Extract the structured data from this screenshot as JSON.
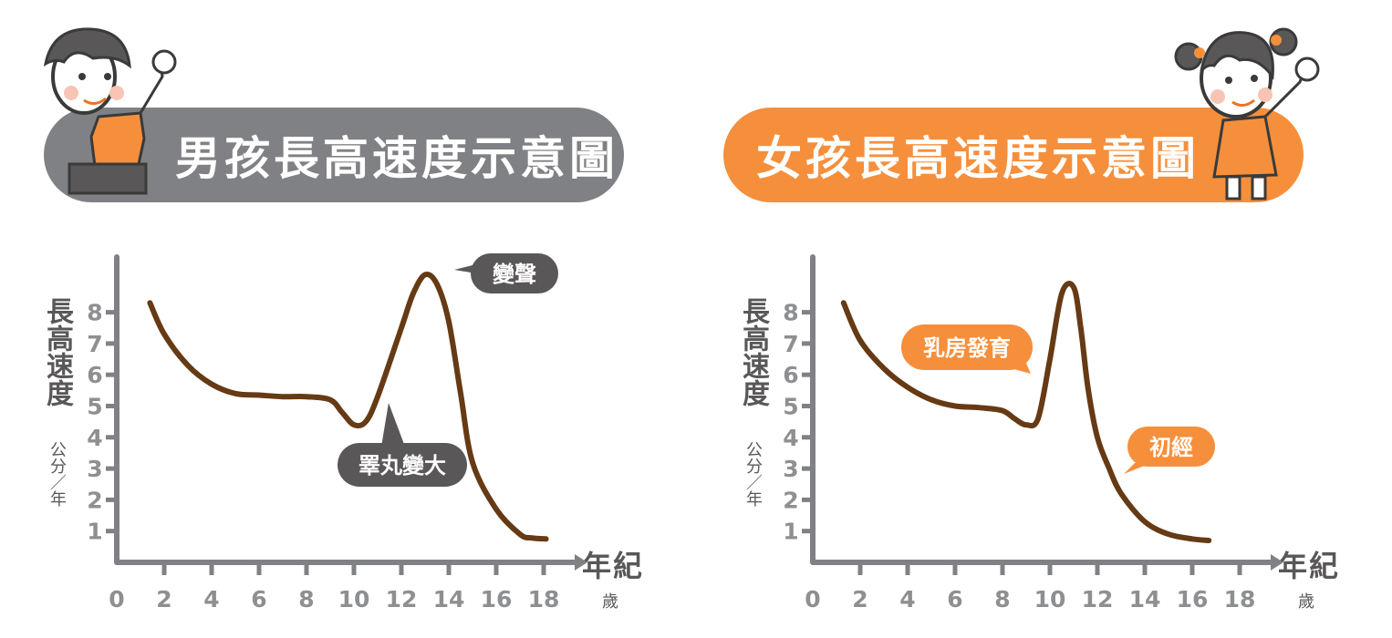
{
  "colors": {
    "boy_accent": "#808184",
    "girl_accent": "#f58f3c",
    "curve": "#653a14",
    "axis": "#808184",
    "label_text": "#595757"
  },
  "chart_data": [
    {
      "type": "line",
      "title": "男孩長高速度示意圖",
      "ylabel": "長高速度",
      "yunit": "公分／年",
      "xlabel": "年紀",
      "xunit": "歲",
      "xlim": [
        0,
        19
      ],
      "ylim": [
        0,
        9.2
      ],
      "x_ticks": [
        0,
        2,
        4,
        6,
        8,
        10,
        12,
        14,
        16,
        18
      ],
      "y_ticks": [
        1,
        2,
        3,
        4,
        5,
        6,
        7,
        8
      ],
      "x": [
        1.4,
        2,
        3,
        4,
        5,
        6,
        7,
        8,
        9,
        9.5,
        10,
        10.5,
        11,
        12,
        12.5,
        13,
        13.5,
        14,
        14.5,
        15,
        16,
        17,
        17.5,
        18.1
      ],
      "y": [
        8.3,
        7.3,
        6.3,
        5.7,
        5.4,
        5.35,
        5.3,
        5.3,
        5.2,
        4.8,
        4.4,
        4.5,
        5.3,
        7.5,
        8.6,
        9.2,
        8.9,
        7.7,
        5.4,
        3.2,
        1.7,
        0.9,
        0.78,
        0.75
      ],
      "annotations": [
        {
          "text": "變聲",
          "x": 13,
          "y": 9.2
        },
        {
          "text": "睪丸變大",
          "x": 10.3,
          "y": 4.4
        }
      ]
    },
    {
      "type": "line",
      "title": "女孩長高速度示意圖",
      "ylabel": "長高速度",
      "yunit": "公分／年",
      "xlabel": "年紀",
      "xunit": "歲",
      "xlim": [
        0,
        19
      ],
      "ylim": [
        0,
        9.2
      ],
      "x_ticks": [
        0,
        2,
        4,
        6,
        8,
        10,
        12,
        14,
        16,
        18
      ],
      "y_ticks": [
        1,
        2,
        3,
        4,
        5,
        6,
        7,
        8
      ],
      "x": [
        1.3,
        2,
        3,
        4,
        5,
        6,
        7,
        8,
        8.5,
        9,
        9.5,
        10,
        10.5,
        11,
        11.3,
        11.6,
        12,
        12.5,
        13,
        14,
        15,
        16,
        16.7
      ],
      "y": [
        8.3,
        7.1,
        6.2,
        5.6,
        5.2,
        5.0,
        4.95,
        4.85,
        4.6,
        4.4,
        4.6,
        6.5,
        8.6,
        8.8,
        7.5,
        5.6,
        4.0,
        3.0,
        2.2,
        1.3,
        0.9,
        0.75,
        0.7
      ],
      "annotations": [
        {
          "text": "乳房發育",
          "x": 9.5,
          "y": 5
        },
        {
          "text": "初經",
          "x": 14,
          "y": 3
        }
      ]
    }
  ]
}
